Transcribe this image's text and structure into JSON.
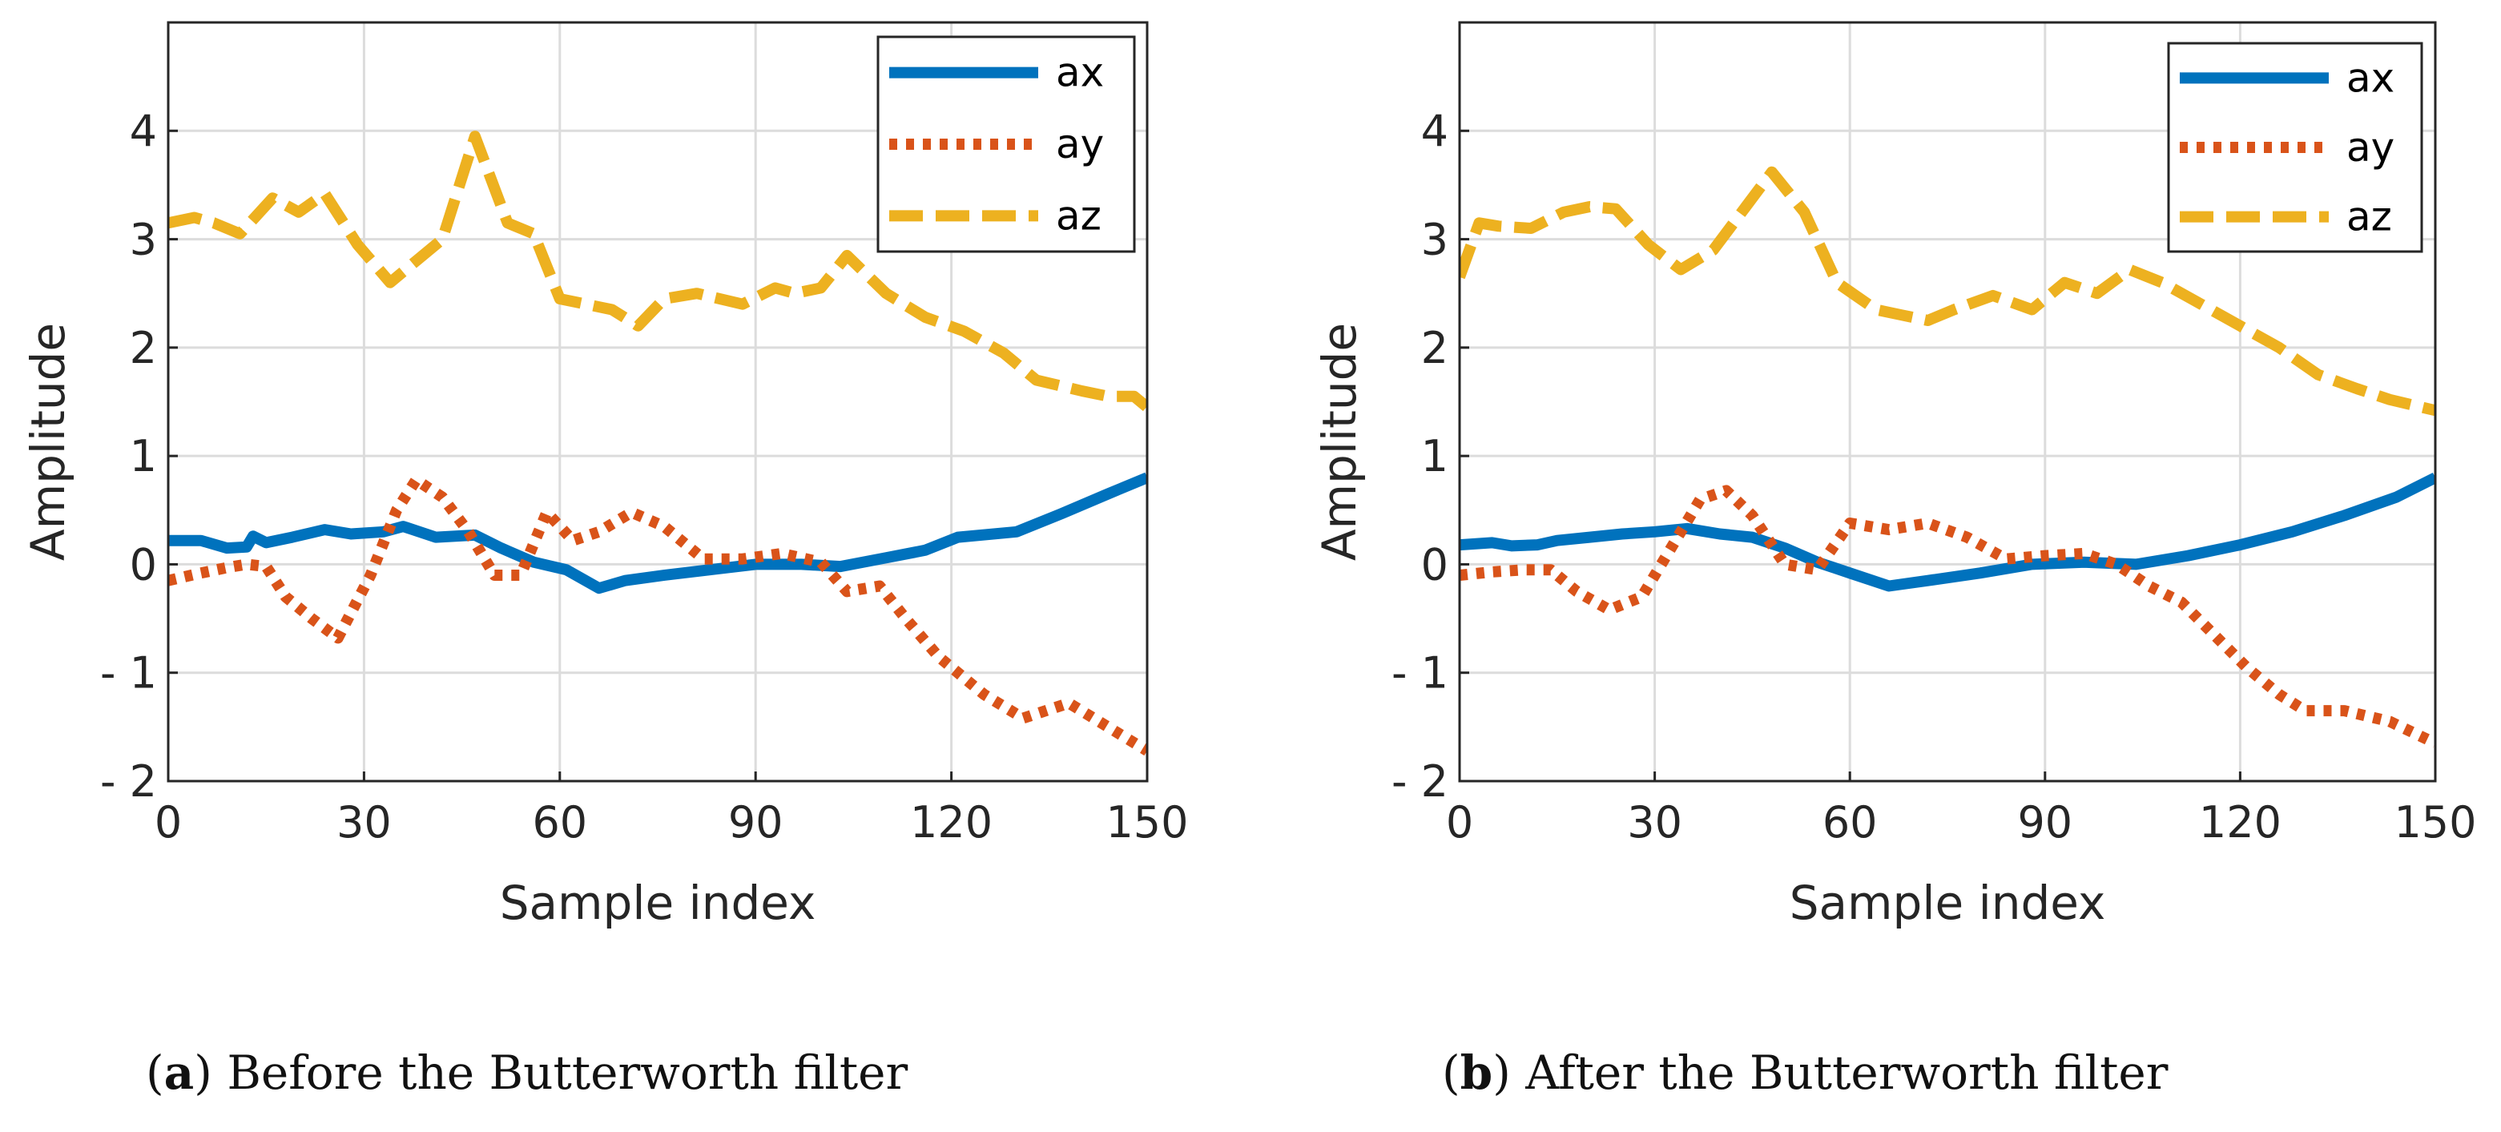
{
  "captions": [
    {
      "label": "a",
      "text": "Before the Butterworth filter"
    },
    {
      "label": "b",
      "text": "After the Butterworth filter"
    }
  ],
  "colors": {
    "ax": "#0072BD",
    "ay": "#D95319",
    "az": "#EDB120",
    "grid": "#dcdcdc",
    "axis": "#262626"
  },
  "chart_data": [
    {
      "type": "line",
      "title": "",
      "xlabel": "Sample index",
      "ylabel": "Amplitude",
      "xlim": [
        0,
        150
      ],
      "ylim": [
        -2,
        5
      ],
      "xticks": [
        0,
        30,
        60,
        90,
        120,
        150
      ],
      "yticks": [
        -2,
        -1,
        0,
        1,
        2,
        3,
        4
      ],
      "ytick_labels": [
        "- 2",
        "- 1",
        "0",
        "1",
        "2",
        "3",
        "4"
      ],
      "grid": true,
      "legend_position": "top-right",
      "series": [
        {
          "name": "ax",
          "style": "solid",
          "x": [
            0,
            5,
            9,
            12,
            13,
            15,
            19,
            24,
            28,
            33,
            36,
            41,
            47,
            51,
            56,
            61,
            66,
            70,
            76,
            83,
            90,
            97,
            103,
            110,
            116,
            121,
            130,
            137,
            144,
            150
          ],
          "y": [
            0.22,
            0.22,
            0.15,
            0.16,
            0.26,
            0.2,
            0.25,
            0.32,
            0.28,
            0.3,
            0.35,
            0.25,
            0.27,
            0.15,
            0.02,
            -0.05,
            -0.22,
            -0.15,
            -0.1,
            -0.05,
            0.0,
            0.0,
            -0.02,
            0.06,
            0.13,
            0.25,
            0.3,
            0.47,
            0.65,
            0.8
          ]
        },
        {
          "name": "ay",
          "style": "dotted",
          "x": [
            0,
            5,
            9,
            12,
            15,
            18,
            22,
            26,
            31,
            35,
            38,
            42,
            46,
            50,
            54,
            58,
            62,
            66,
            71,
            76,
            82,
            88,
            94,
            100,
            104,
            109,
            113,
            118,
            125,
            131,
            138,
            144,
            150
          ],
          "y": [
            -0.15,
            -0.08,
            -0.03,
            0.0,
            -0.02,
            -0.3,
            -0.5,
            -0.68,
            -0.1,
            0.5,
            0.78,
            0.62,
            0.3,
            -0.1,
            -0.1,
            0.48,
            0.22,
            0.3,
            0.48,
            0.35,
            0.05,
            0.05,
            0.1,
            0.02,
            -0.25,
            -0.2,
            -0.5,
            -0.85,
            -1.2,
            -1.42,
            -1.28,
            -1.5,
            -1.72
          ]
        },
        {
          "name": "az",
          "style": "dashed",
          "x": [
            0,
            4,
            7,
            11,
            16,
            20,
            24,
            29,
            34,
            38,
            42,
            47,
            52,
            56,
            60,
            64,
            68,
            72,
            76,
            81,
            88,
            93,
            96,
            100,
            104,
            110,
            116,
            122,
            128,
            133,
            140,
            144,
            148,
            150
          ],
          "y": [
            3.15,
            3.2,
            3.15,
            3.05,
            3.38,
            3.25,
            3.42,
            2.95,
            2.6,
            2.8,
            3.0,
            3.95,
            3.15,
            3.05,
            2.45,
            2.4,
            2.35,
            2.2,
            2.45,
            2.5,
            2.4,
            2.55,
            2.5,
            2.55,
            2.85,
            2.5,
            2.28,
            2.15,
            1.95,
            1.7,
            1.6,
            1.55,
            1.55,
            1.45
          ]
        }
      ]
    },
    {
      "type": "line",
      "title": "",
      "xlabel": "Sample index",
      "ylabel": "Amplitude",
      "xlim": [
        0,
        150
      ],
      "ylim": [
        -2,
        5
      ],
      "xticks": [
        0,
        30,
        60,
        90,
        120,
        150
      ],
      "yticks": [
        -2,
        -1,
        0,
        1,
        2,
        3,
        4
      ],
      "ytick_labels": [
        "- 2",
        "- 1",
        "0",
        "1",
        "2",
        "3",
        "4"
      ],
      "grid": true,
      "legend_position": "top-right",
      "series": [
        {
          "name": "ax",
          "style": "solid",
          "x": [
            0,
            5,
            8,
            12,
            15,
            20,
            25,
            30,
            35,
            40,
            45,
            50,
            55,
            60,
            66,
            72,
            80,
            88,
            96,
            104,
            112,
            120,
            128,
            136,
            144,
            150
          ],
          "y": [
            0.18,
            0.2,
            0.17,
            0.18,
            0.22,
            0.25,
            0.28,
            0.3,
            0.33,
            0.28,
            0.25,
            0.15,
            0.02,
            -0.08,
            -0.2,
            -0.15,
            -0.08,
            0.0,
            0.02,
            0.0,
            0.08,
            0.18,
            0.3,
            0.45,
            0.62,
            0.8
          ]
        },
        {
          "name": "ay",
          "style": "dotted",
          "x": [
            0,
            5,
            10,
            14,
            18,
            23,
            28,
            33,
            37,
            41,
            45,
            50,
            55,
            60,
            66,
            72,
            78,
            84,
            90,
            96,
            101,
            106,
            111,
            116,
            121,
            126,
            130,
            136,
            143,
            150
          ],
          "y": [
            -0.1,
            -0.07,
            -0.05,
            -0.05,
            -0.25,
            -0.42,
            -0.3,
            0.2,
            0.6,
            0.68,
            0.45,
            0.0,
            -0.05,
            0.38,
            0.32,
            0.38,
            0.25,
            0.05,
            0.08,
            0.1,
            0.0,
            -0.2,
            -0.35,
            -0.65,
            -0.95,
            -1.2,
            -1.35,
            -1.35,
            -1.45,
            -1.65
          ]
        },
        {
          "name": "az",
          "style": "dashed",
          "x": [
            0,
            3,
            6,
            11,
            16,
            20,
            24,
            29,
            34,
            39,
            44,
            48,
            53,
            58,
            64,
            68,
            72,
            76,
            82,
            88,
            93,
            98,
            103,
            108,
            114,
            120,
            126,
            132,
            138,
            143,
            150
          ],
          "y": [
            2.65,
            3.15,
            3.12,
            3.1,
            3.25,
            3.3,
            3.28,
            2.95,
            2.72,
            2.9,
            3.3,
            3.62,
            3.25,
            2.6,
            2.35,
            2.3,
            2.25,
            2.35,
            2.48,
            2.35,
            2.6,
            2.5,
            2.72,
            2.6,
            2.4,
            2.2,
            2.0,
            1.75,
            1.62,
            1.52,
            1.42
          ]
        }
      ]
    }
  ]
}
